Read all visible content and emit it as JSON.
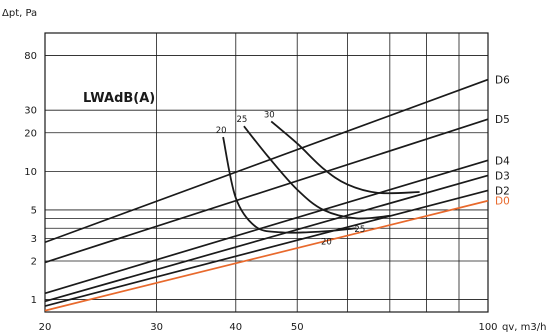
{
  "chart_data": {
    "type": "line",
    "title": "LWAdB(A)",
    "ylabel": "Δpt, Pa",
    "xlabel": "qv, m3/h",
    "x_scale": "log",
    "y_scale": "log",
    "xlim": [
      20,
      100
    ],
    "ylim": [
      0.8,
      120
    ],
    "x_ticks": [
      20,
      30,
      40,
      50,
      100
    ],
    "x_gridlines": [
      20,
      30,
      40,
      50,
      60,
      70,
      80,
      90,
      100
    ],
    "y_ticks": [
      1,
      2,
      3,
      5,
      10,
      20,
      30,
      80
    ],
    "y_gridlines": [
      1,
      2,
      3,
      3.6,
      4.3,
      5,
      10,
      20,
      30,
      80
    ],
    "grid": true,
    "colors": {
      "D0": "#e8692c",
      "default": "#1a1a1a"
    },
    "series": [
      {
        "name": "D6",
        "x": [
          20,
          100
        ],
        "y": [
          2.8,
          52
        ]
      },
      {
        "name": "D5",
        "x": [
          20,
          100
        ],
        "y": [
          1.95,
          25.5
        ]
      },
      {
        "name": "D4",
        "x": [
          20,
          100
        ],
        "y": [
          1.12,
          12.2
        ]
      },
      {
        "name": "D3",
        "x": [
          20,
          100
        ],
        "y": [
          0.97,
          9.3
        ]
      },
      {
        "name": "D2",
        "x": [
          20,
          100
        ],
        "y": [
          0.89,
          7.1
        ]
      },
      {
        "name": "D0",
        "x": [
          20,
          100
        ],
        "y": [
          0.82,
          5.9
        ]
      }
    ],
    "sound_curves": [
      {
        "label_top": "20",
        "label_bottom": "20",
        "x": [
          38.2,
          40,
          43,
          47,
          52,
          57,
          62
        ],
        "y": [
          18.5,
          6.2,
          3.7,
          3.35,
          3.35,
          3.45,
          3.6
        ]
      },
      {
        "label_top": "25",
        "label_bottom": "25",
        "x": [
          41.2,
          45,
          50,
          55,
          62,
          70
        ],
        "y": [
          22.5,
          13,
          7.2,
          5,
          4.3,
          4.5
        ]
      },
      {
        "label_top": "30",
        "label_bottom": "",
        "x": [
          45.5,
          50,
          55,
          60,
          67,
          78
        ],
        "y": [
          24.5,
          16.5,
          10.5,
          7.9,
          6.8,
          6.9
        ]
      }
    ]
  }
}
